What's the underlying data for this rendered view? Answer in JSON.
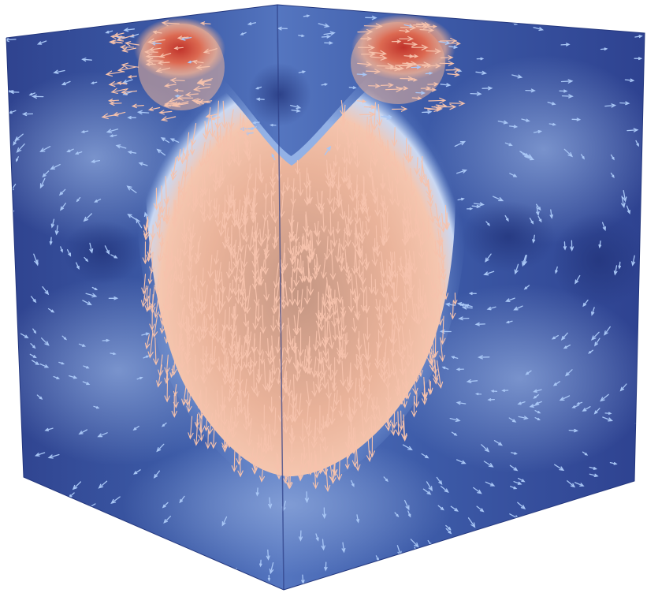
{
  "scene": {
    "description_kind": "3d-flow-visualization",
    "object": "cube",
    "faces_visible": [
      "left",
      "right"
    ],
    "field": {
      "colormap": "cool-to-warm",
      "colors": {
        "low": "#2b3f8f",
        "low_mid": "#4a6bb5",
        "mid": "#a9c4ee",
        "high_mid": "#f3b39a",
        "high": "#c83a2d",
        "arrow_cool": "#a8c6f5",
        "arrow_warm": "#f6c2ac",
        "edge_shadow": "#1f2f72"
      }
    },
    "glyphs": {
      "type": "arrows",
      "density": "high"
    }
  }
}
